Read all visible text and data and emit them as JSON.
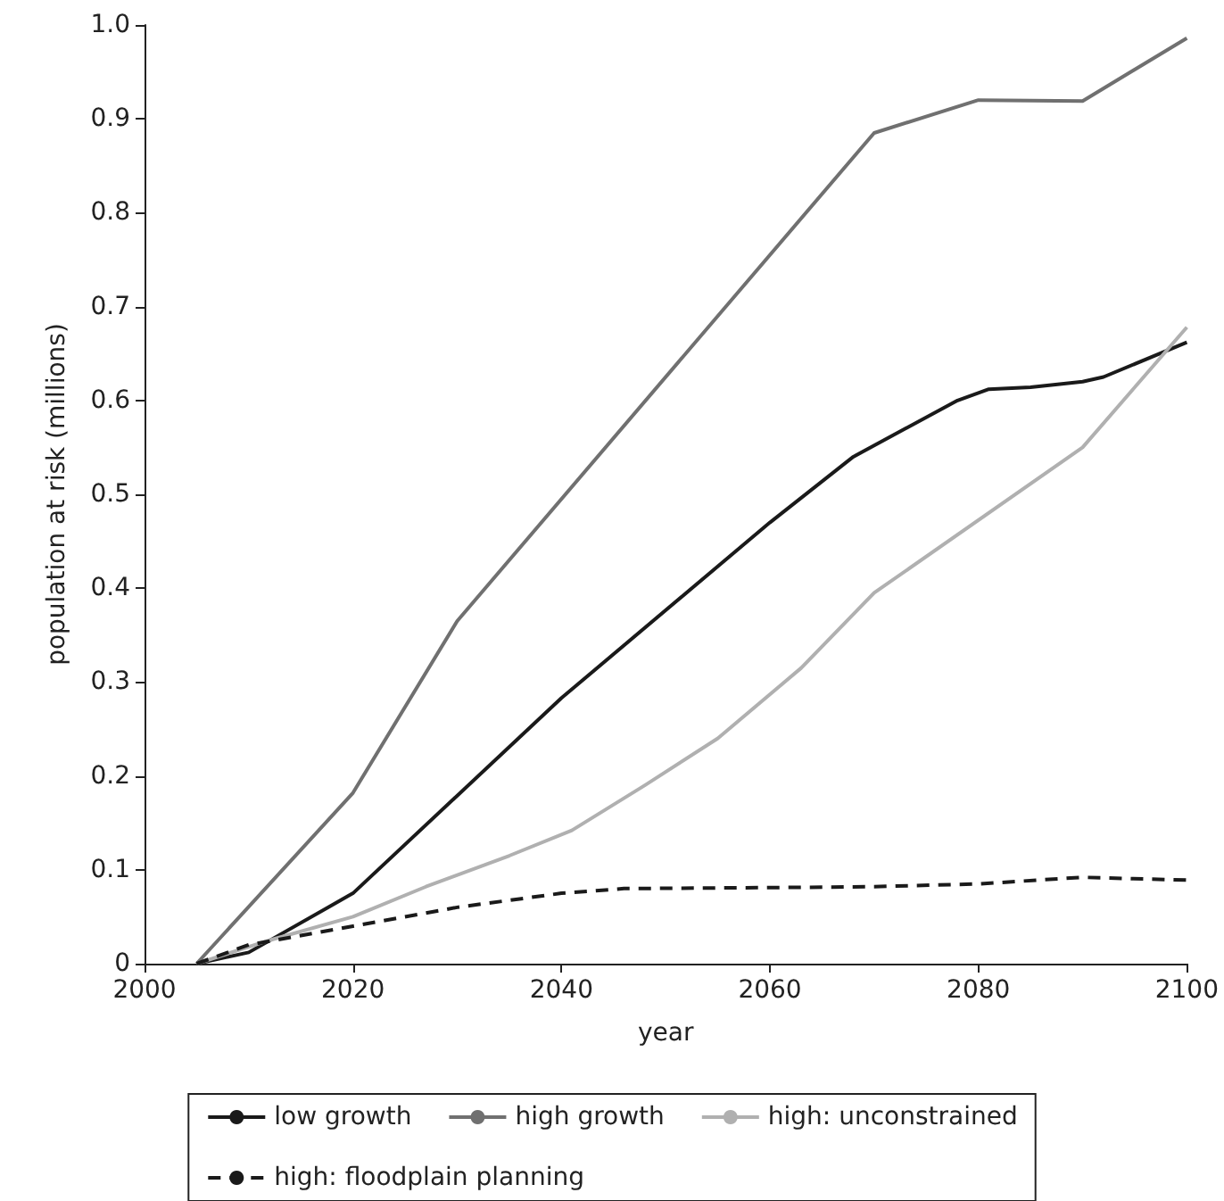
{
  "chart_data": {
    "type": "line",
    "xlabel": "year",
    "ylabel": "population at risk (millions)",
    "xlim": [
      2000,
      2100
    ],
    "xticks": [
      2000,
      2020,
      2040,
      2060,
      2080,
      2100
    ],
    "ylim": [
      0,
      1
    ],
    "yticks": [
      0,
      0.1,
      0.2,
      0.3,
      0.4,
      0.5,
      0.6,
      0.7,
      0.8,
      0.9,
      {
        "value": 1,
        "label": "1.0"
      }
    ],
    "grid": false,
    "legend": "bottom",
    "marker": "none",
    "series": [
      {
        "name": "low growth",
        "color": "#1a1a1a",
        "line_style": "solid",
        "x": [
          2005,
          2010,
          2020,
          2040,
          2060,
          2068,
          2073,
          2078,
          2081,
          2085,
          2090,
          2092,
          2100
        ],
        "values": [
          0,
          0.012,
          0.075,
          0.283,
          0.47,
          0.54,
          0.57,
          0.6,
          0.612,
          0.614,
          0.62,
          0.625,
          0.662
        ]
      },
      {
        "name": "high growth",
        "color": "#707070",
        "line_style": "solid",
        "x": [
          2005,
          2020,
          2030,
          2070,
          2080,
          2090,
          2100
        ],
        "values": [
          0,
          0.182,
          0.365,
          0.885,
          0.92,
          0.919,
          0.986
        ]
      },
      {
        "name": "high: unconstrained",
        "color": "#b0b0b0",
        "line_style": "solid",
        "x": [
          2005,
          2012,
          2020,
          2027,
          2035,
          2041,
          2048,
          2055,
          2063,
          2070,
          2090,
          2100
        ],
        "values": [
          0,
          0.025,
          0.05,
          0.082,
          0.115,
          0.142,
          0.19,
          0.24,
          0.315,
          0.395,
          0.55,
          0.678
        ]
      },
      {
        "name": "high: floodplain planning",
        "color": "#1a1a1a",
        "line_style": "dashed",
        "x": [
          2005,
          2010,
          2020,
          2030,
          2040,
          2046,
          2060,
          2070,
          2080,
          2090,
          2100
        ],
        "values": [
          0,
          0.02,
          0.04,
          0.06,
          0.075,
          0.08,
          0.081,
          0.082,
          0.085,
          0.092,
          0.089
        ]
      }
    ]
  }
}
